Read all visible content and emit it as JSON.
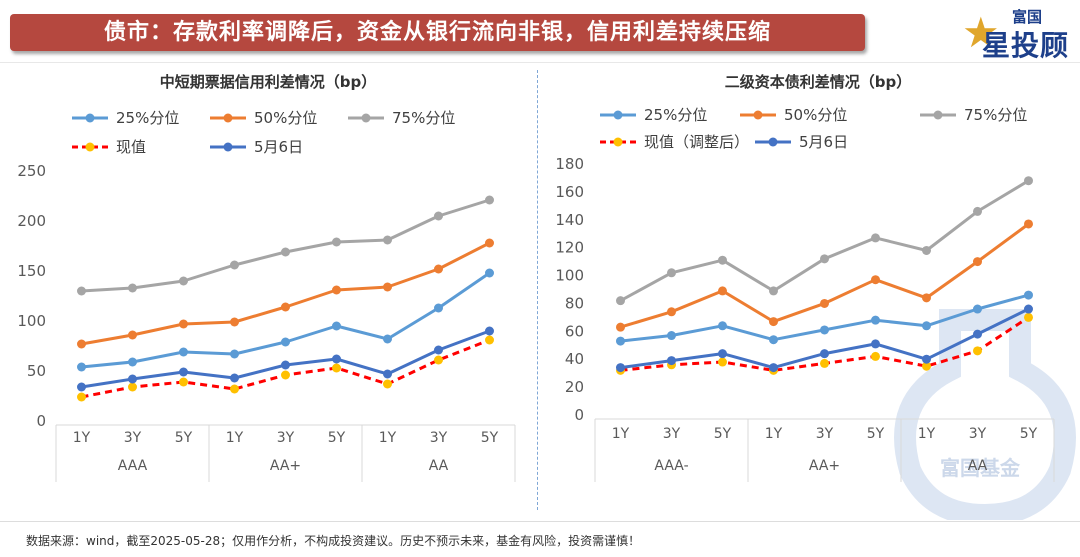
{
  "header": {
    "title": "债市：存款利率调降后，资金从银行流向非银，信用利差持续压缩"
  },
  "logo": {
    "top": "富国",
    "main": "星投顾",
    "watermark": "富国基金"
  },
  "footer": {
    "note": "数据来源：wind，截至2025-05-28；仅用作分析，不构成投资建议。历史不预示未来，基金有风险，投资需谨慎！"
  },
  "colors": {
    "p25": "#5b9bd5",
    "p50": "#ed7d31",
    "p75": "#a5a5a5",
    "current": "#ff0000",
    "current_marker": "#ffc000",
    "may6": "#4472c4",
    "title_bg": "#b5483f"
  },
  "chart_data": [
    {
      "type": "line",
      "title": "中短期票据信用利差情况（bp）",
      "x": [
        "1Y",
        "3Y",
        "5Y",
        "1Y",
        "3Y",
        "5Y",
        "1Y",
        "3Y",
        "5Y"
      ],
      "groups": [
        "AAA",
        "AA+",
        "AA"
      ],
      "ylim": [
        0,
        250
      ],
      "yticks": [
        0,
        50,
        100,
        150,
        200,
        250
      ],
      "grid": false,
      "legend": "top",
      "series": [
        {
          "name": "25%分位",
          "values": [
            54,
            59,
            69,
            67,
            79,
            95,
            82,
            113,
            148
          ]
        },
        {
          "name": "50%分位",
          "values": [
            77,
            86,
            97,
            99,
            114,
            131,
            134,
            152,
            178
          ]
        },
        {
          "name": "75%分位",
          "values": [
            130,
            133,
            140,
            156,
            169,
            179,
            181,
            205,
            221
          ]
        },
        {
          "name": "现值",
          "values": [
            24,
            34,
            39,
            32,
            46,
            53,
            37,
            61,
            81
          ]
        },
        {
          "name": "5月6日",
          "values": [
            34,
            42,
            49,
            43,
            56,
            62,
            47,
            71,
            90
          ]
        }
      ]
    },
    {
      "type": "line",
      "title": "二级资本债利差情况（bp）",
      "x": [
        "1Y",
        "3Y",
        "5Y",
        "1Y",
        "3Y",
        "5Y",
        "1Y",
        "3Y",
        "5Y"
      ],
      "groups": [
        "AAA-",
        "AA+",
        "AA"
      ],
      "ylim": [
        0,
        180
      ],
      "yticks": [
        0,
        20,
        40,
        60,
        80,
        100,
        120,
        140,
        160,
        180
      ],
      "grid": false,
      "legend": "top",
      "series": [
        {
          "name": "25%分位",
          "values": [
            53,
            57,
            64,
            54,
            61,
            68,
            64,
            76,
            86
          ]
        },
        {
          "name": "50%分位",
          "values": [
            63,
            74,
            89,
            67,
            80,
            97,
            84,
            110,
            137
          ]
        },
        {
          "name": "75%分位",
          "values": [
            82,
            102,
            111,
            89,
            112,
            127,
            118,
            146,
            168
          ]
        },
        {
          "name": "现值（调整后）",
          "values": [
            32,
            36,
            38,
            32,
            37,
            42,
            35,
            46,
            70
          ]
        },
        {
          "name": "5月6日",
          "values": [
            34,
            39,
            44,
            34,
            44,
            51,
            40,
            58,
            76
          ]
        }
      ]
    }
  ]
}
